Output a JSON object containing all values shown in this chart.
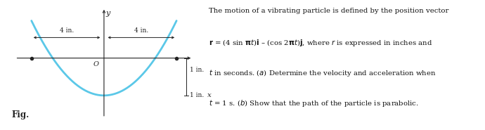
{
  "curve_color": "#5BC8E8",
  "curve_linewidth": 2.0,
  "dot_color": "#222222",
  "dot_size": 4,
  "axis_color": "#222222",
  "fig_label": "Fig.",
  "dim_label_4in_left": "4 in.",
  "dim_label_4in_right": "4 in.",
  "dim_label_1in_top": "1 in.",
  "dim_label_1in_bot": "1 in.",
  "background_color": "#ffffff",
  "text_lines": [
    "The motion of a vibrating particle is defined by the position vector",
    "$\\mathbf{r}$ = (4 sin $\\mathbf{\\pi}$$t$)$\\mathbf{i}$ – (cos 2$\\mathbf{\\pi}$$t$)$\\mathbf{j}$, where $r$ is expressed in inches and",
    "$t$ in seconds. ($a$) Determine the velocity and acceleration when",
    "$t$ = 1 s. ($b$) Show that the path of the particle is parabolic."
  ]
}
